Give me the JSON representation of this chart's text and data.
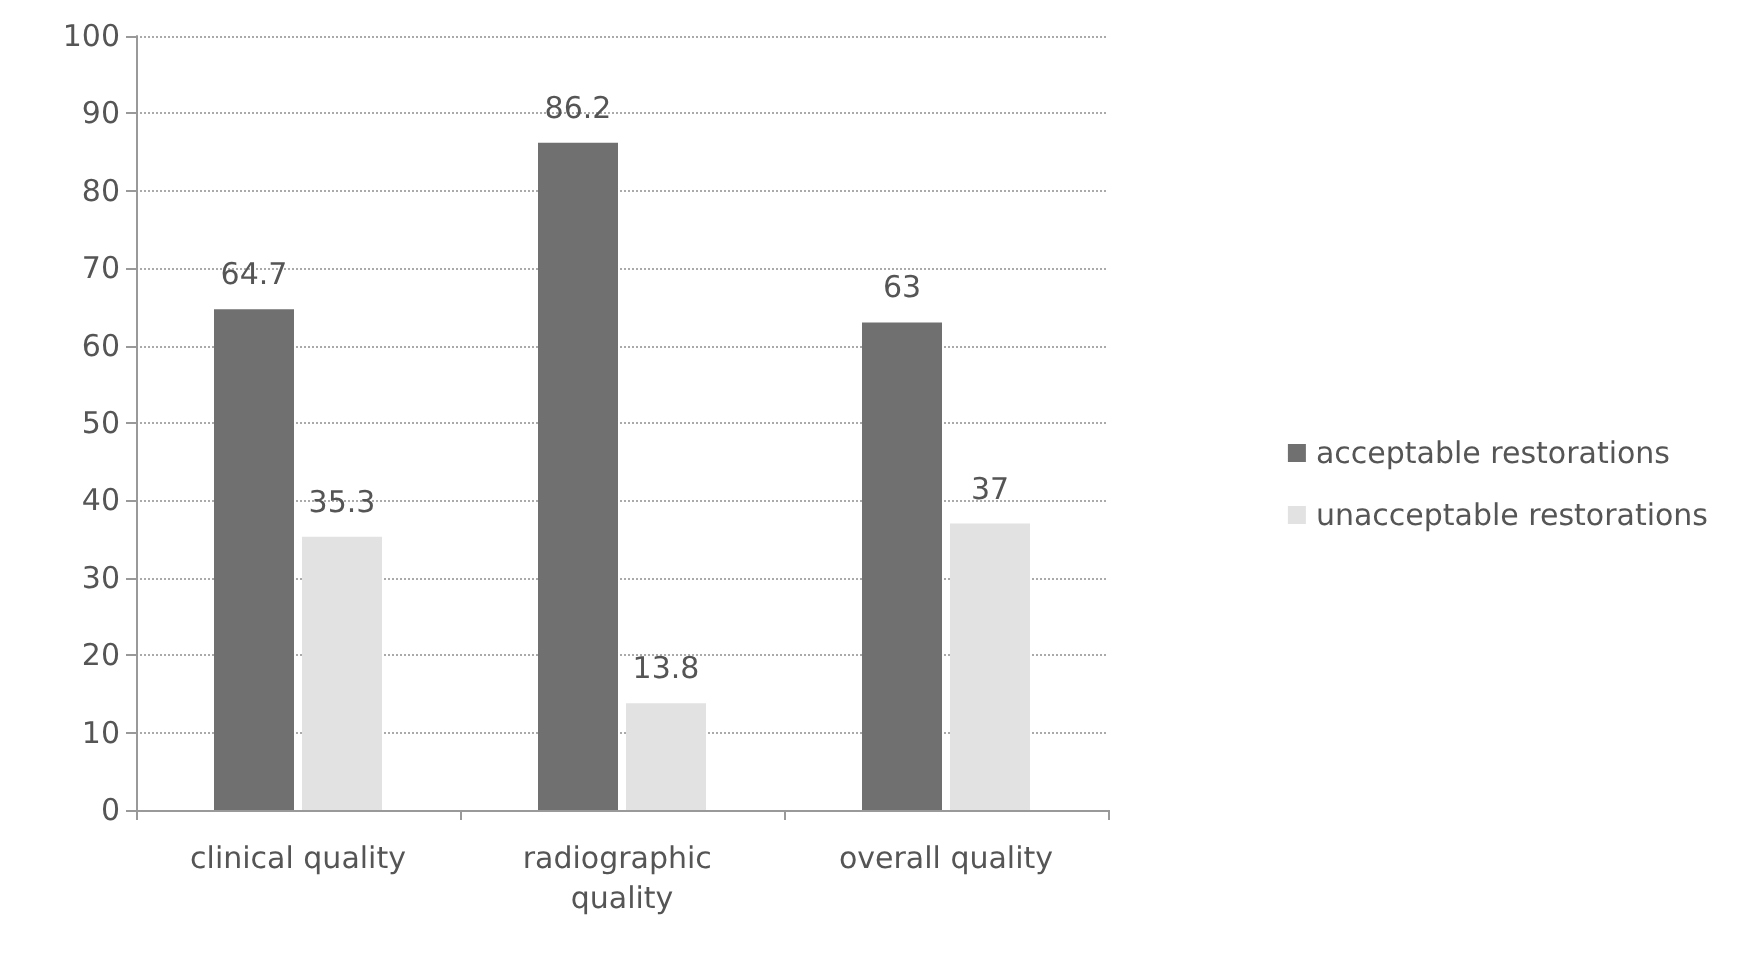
{
  "chart_data": {
    "type": "bar",
    "categories": [
      "clinical quality",
      "radiographic quality",
      "overall quality"
    ],
    "series": [
      {
        "name": "acceptable restorations",
        "color": "#707070",
        "values": [
          64.7,
          86.2,
          63
        ]
      },
      {
        "name": "unacceptable restorations",
        "color": "#e2e2e2",
        "values": [
          35.3,
          13.8,
          37
        ]
      }
    ],
    "ylim": [
      0,
      100
    ],
    "yticks": [
      0,
      10,
      20,
      30,
      40,
      50,
      60,
      70,
      80,
      90,
      100
    ],
    "grid": "y",
    "legend": "right",
    "data_labels": true
  }
}
